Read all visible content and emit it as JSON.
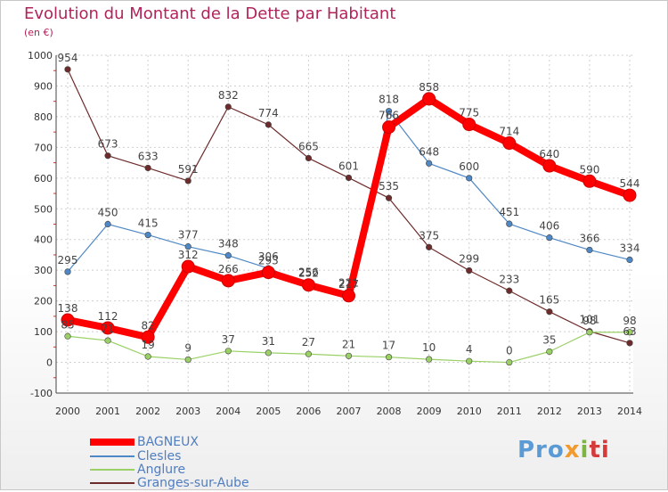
{
  "chart_data": {
    "type": "line",
    "title": "Evolution du Montant de la Dette par Habitant",
    "subtitle": "(en €)",
    "x": [
      "2000",
      "2001",
      "2002",
      "2003",
      "2004",
      "2005",
      "2006",
      "2007",
      "2008",
      "2009",
      "2010",
      "2011",
      "2012",
      "2013",
      "2014"
    ],
    "ylim": [
      -100,
      1000
    ],
    "yticks": [
      -100,
      0,
      100,
      200,
      300,
      400,
      500,
      600,
      700,
      800,
      900,
      1000
    ],
    "ytick_labels": [
      "-100",
      "0",
      "100",
      "200",
      "300",
      "400",
      "500",
      "600",
      "700",
      "800",
      "900",
      "1000"
    ],
    "grid": true,
    "legend_position": "bottom-left",
    "series": [
      {
        "name": "BAGNEUX",
        "color": "#ff0000",
        "values": [
          138,
          112,
          82,
          312,
          266,
          293,
          252,
          217,
          766,
          858,
          775,
          714,
          640,
          590,
          544
        ]
      },
      {
        "name": "Clesles",
        "color": "#4f88c6",
        "values": [
          295,
          450,
          415,
          377,
          348,
          306,
          256,
          221,
          818,
          648,
          600,
          451,
          406,
          366,
          334
        ]
      },
      {
        "name": "Anglure",
        "color": "#9ad065",
        "values": [
          85,
          71,
          19,
          9,
          37,
          31,
          27,
          21,
          17,
          10,
          4,
          0,
          35,
          98,
          98
        ]
      },
      {
        "name": "Granges-sur-Aube",
        "color": "#6e2b2b",
        "values": [
          954,
          673,
          633,
          591,
          832,
          774,
          665,
          601,
          535,
          375,
          299,
          233,
          165,
          101,
          63
        ]
      }
    ]
  },
  "logo": {
    "p1": "Pro",
    "p2": "x",
    "p3": "i",
    "p4": "ti"
  }
}
